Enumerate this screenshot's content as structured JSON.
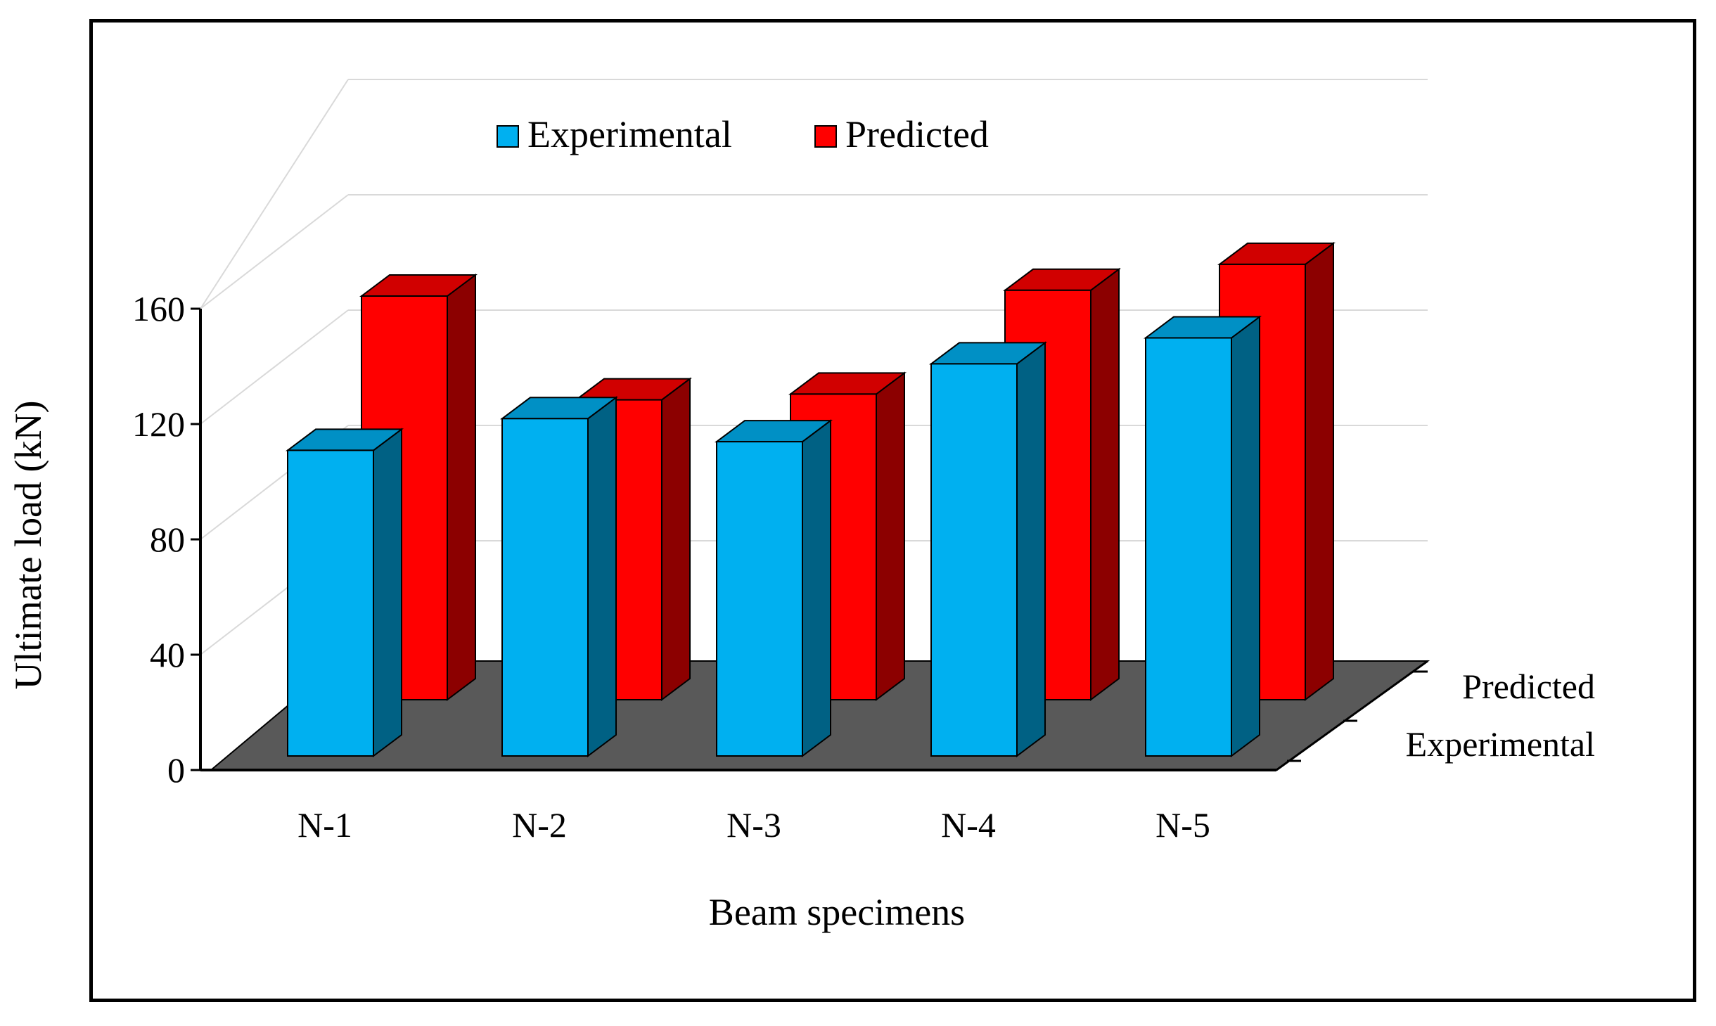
{
  "chart_data": {
    "type": "bar",
    "subtype": "3d-column",
    "title": "",
    "xlabel": "Beam specimens",
    "ylabel": "Ultimate load (kN)",
    "categories": [
      "N-1",
      "N-2",
      "N-3",
      "N-4",
      "N-5"
    ],
    "series": [
      {
        "name": "Experimental",
        "values": [
          106,
          117,
          109,
          136,
          145
        ],
        "color": "#00B0F0"
      },
      {
        "name": "Predicted",
        "values": [
          140,
          104,
          106,
          142,
          151
        ],
        "color": "#FF0000"
      }
    ],
    "depth_labels": [
      "Predicted",
      "Experimental"
    ],
    "ylim": [
      0,
      160
    ],
    "yticks": [
      "0",
      "40",
      "80",
      "120",
      "160"
    ],
    "grid": true,
    "legend_position": "top",
    "floor_color": "#595959"
  }
}
